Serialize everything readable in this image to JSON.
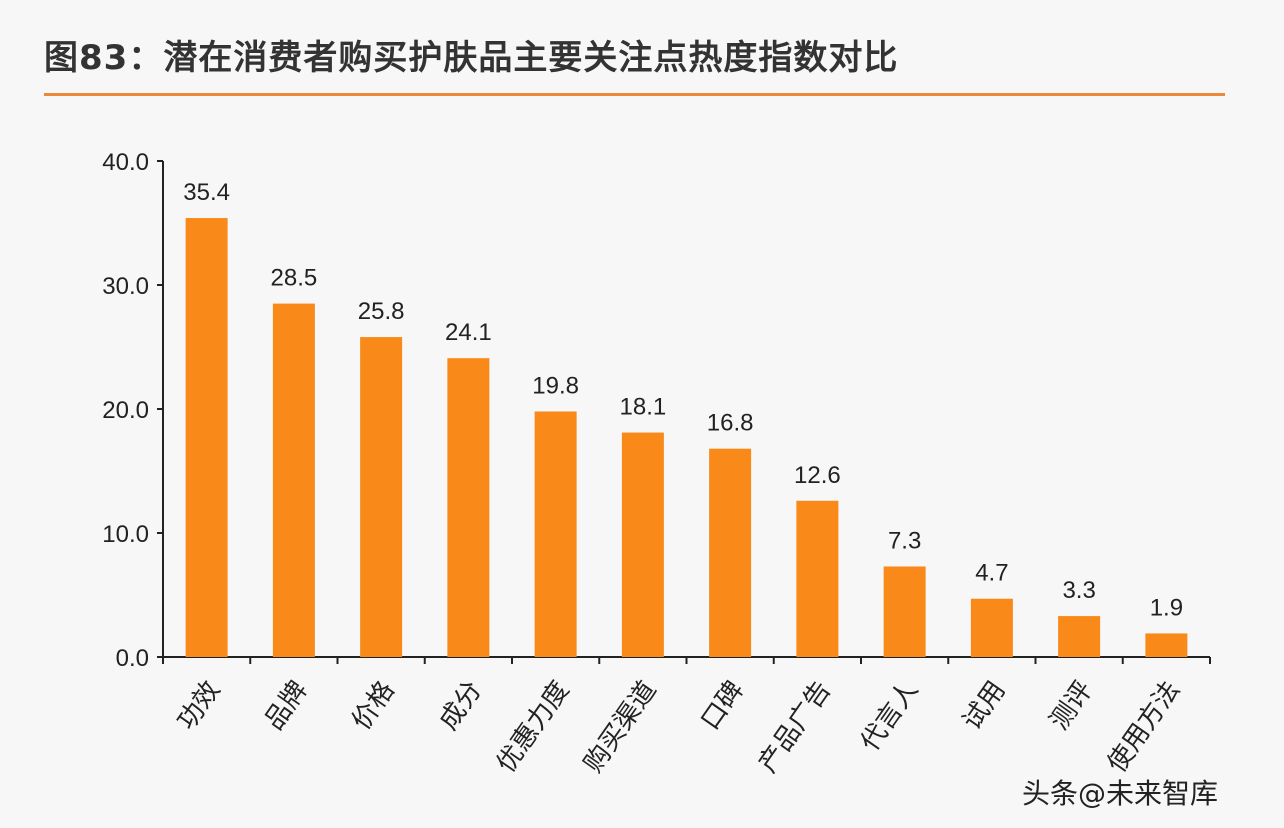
{
  "chart_data": {
    "type": "bar",
    "title": "图83：潜在消费者购买护肤品主要关注点热度指数对比",
    "categories": [
      "功效",
      "品牌",
      "价格",
      "成分",
      "优惠力度",
      "购买渠道",
      "口碑",
      "产品广告",
      "代言人",
      "试用",
      "测评",
      "使用方法"
    ],
    "values": [
      35.4,
      28.5,
      25.8,
      24.1,
      19.8,
      18.1,
      16.8,
      12.6,
      7.3,
      4.7,
      3.3,
      1.9
    ],
    "value_labels": [
      "35.4",
      "28.5",
      "25.8",
      "24.1",
      "19.8",
      "18.1",
      "16.8",
      "12.6",
      "7.3",
      "4.7",
      "3.3",
      "1.9"
    ],
    "ylim": [
      0,
      40
    ],
    "yticks": [
      "0.0",
      "10.0",
      "20.0",
      "30.0",
      "40.0"
    ],
    "xlabel": "",
    "ylabel": "",
    "grid": false,
    "bar_color": "#f98a1a",
    "accent_color": "#e88a3a"
  },
  "watermark": "头条@未来智库"
}
